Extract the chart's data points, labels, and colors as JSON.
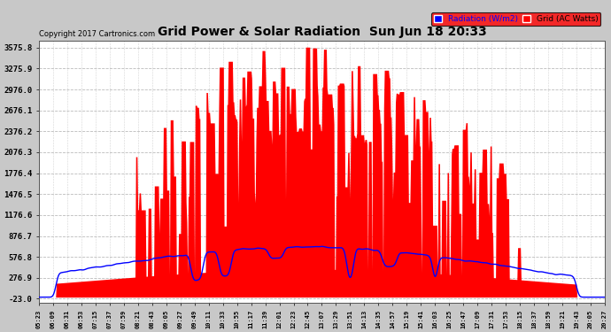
{
  "title": "Grid Power & Solar Radiation  Sun Jun 18 20:33",
  "copyright": "Copyright 2017 Cartronics.com",
  "legend_radiation": "Radiation (W/m2)",
  "legend_grid": "Grid (AC Watts)",
  "background_color": "#c8c8c8",
  "plot_bg_color": "#ffffff",
  "grid_color": "#aaaaaa",
  "ytick_vals": [
    3575.8,
    3275.9,
    2976.0,
    2676.1,
    2376.2,
    2076.3,
    1776.4,
    1476.5,
    1176.6,
    876.7,
    576.8,
    276.9,
    -23.0
  ],
  "ytick_labels": [
    "3575.8",
    "3275.9",
    "2976.0",
    "2676.1",
    "2376.2",
    "2076.3",
    "1776.4",
    "1476.5",
    "1176.6",
    "876.7",
    "576.8",
    "276.9",
    "-23.0"
  ],
  "ylim_min": -80.0,
  "ylim_max": 3680.0,
  "red_fill_color": "#ff0000",
  "blue_line_color": "#0000ff",
  "xtick_labels": [
    "05:23",
    "06:09",
    "06:31",
    "06:53",
    "07:15",
    "07:37",
    "07:59",
    "08:21",
    "08:43",
    "09:05",
    "09:27",
    "09:49",
    "10:11",
    "10:33",
    "10:55",
    "11:17",
    "11:39",
    "12:01",
    "12:23",
    "12:45",
    "13:07",
    "13:29",
    "13:51",
    "14:13",
    "14:35",
    "14:57",
    "15:19",
    "15:41",
    "16:03",
    "16:25",
    "16:47",
    "17:09",
    "17:31",
    "17:53",
    "18:15",
    "18:37",
    "18:59",
    "19:21",
    "19:43",
    "20:05",
    "20:27"
  ]
}
